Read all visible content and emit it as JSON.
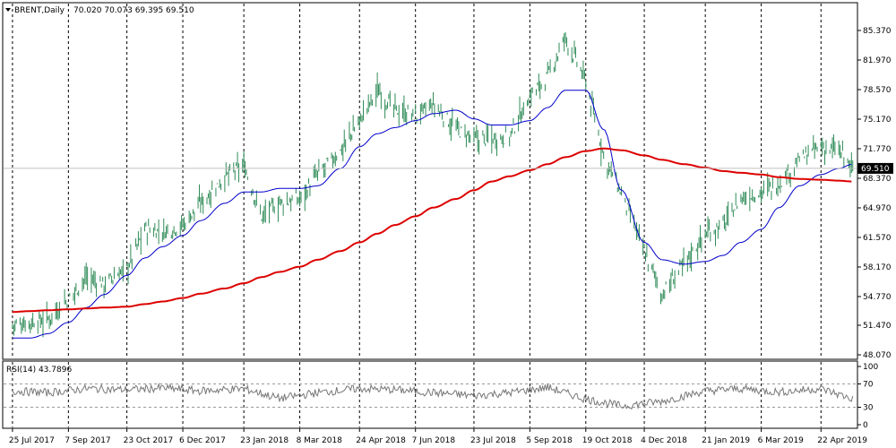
{
  "header": {
    "symbol": "BRENT,Daily",
    "ohlc": "70.020 70.073 69.395 69.510"
  },
  "colors": {
    "price_bars": "#2e8b57",
    "ma_fast": "#0000cc",
    "ma_slow": "#dd0000",
    "grid": "#000000",
    "rsi_line": "#777777",
    "price_line": "#c0c0c0",
    "last_price_bg": "#000000",
    "last_price_fg": "#ffffff"
  },
  "chart_data": [
    {
      "type": "line",
      "panel": "price",
      "title": "BRENT,Daily",
      "ylim": [
        48.07,
        88.0
      ],
      "y_ticks": [
        "85.370",
        "81.970",
        "78.570",
        "75.170",
        "71.770",
        "68.370",
        "64.970",
        "61.570",
        "58.170",
        "54.770",
        "51.470",
        "48.070"
      ],
      "last_price_label": "69.510",
      "x_dates": [
        "25 Jul 2017",
        "7 Sep 2017",
        "23 Oct 2017",
        "6 Dec 2017",
        "23 Jan 2018",
        "8 Mar 2018",
        "24 Apr 2018",
        "7 Jun 2018",
        "23 Jul 2018",
        "5 Sep 2018",
        "19 Oct 2018",
        "4 Dec 2018",
        "21 Jan 2019",
        "6 Mar 2019",
        "22 Apr 2019"
      ],
      "series": [
        {
          "style": "bars",
          "x": [
            "2017-07-25",
            "2017-08-08",
            "2017-08-22",
            "2017-09-07",
            "2017-09-21",
            "2017-10-05",
            "2017-10-23",
            "2017-11-06",
            "2017-11-20",
            "2017-12-06",
            "2017-12-20",
            "2018-01-08",
            "2018-01-23",
            "2018-02-06",
            "2018-02-20",
            "2018-03-08",
            "2018-03-22",
            "2018-04-09",
            "2018-04-24",
            "2018-05-08",
            "2018-05-22",
            "2018-06-07",
            "2018-06-21",
            "2018-07-09",
            "2018-07-23",
            "2018-08-06",
            "2018-08-20",
            "2018-09-05",
            "2018-09-19",
            "2018-10-03",
            "2018-10-19",
            "2018-11-02",
            "2018-11-16",
            "2018-12-04",
            "2018-12-18",
            "2019-01-04",
            "2019-01-21",
            "2019-02-04",
            "2019-02-18",
            "2019-03-06",
            "2019-03-20",
            "2019-04-05",
            "2019-04-22",
            "2019-05-06",
            "2019-05-17"
          ],
          "values": [
            51.5,
            51.8,
            52.2,
            54.5,
            57.0,
            56.2,
            58.0,
            62.5,
            62.2,
            63.0,
            65.5,
            68.5,
            69.8,
            64.0,
            65.5,
            66.0,
            68.8,
            71.5,
            75.0,
            78.5,
            76.2,
            75.5,
            76.8,
            74.0,
            72.8,
            73.0,
            73.2,
            77.8,
            80.0,
            84.5,
            79.5,
            71.0,
            66.5,
            60.0,
            55.0,
            58.5,
            62.0,
            63.0,
            66.0,
            66.8,
            67.8,
            70.5,
            72.0,
            71.5,
            69.5
          ]
        },
        {
          "style": "line",
          "x": [
            "2017-07-25",
            "2017-08-08",
            "2017-08-22",
            "2017-09-07",
            "2017-09-21",
            "2017-10-05",
            "2017-10-23",
            "2017-11-06",
            "2017-11-20",
            "2017-12-06",
            "2017-12-20",
            "2018-01-08",
            "2018-01-23",
            "2018-02-06",
            "2018-02-20",
            "2018-03-08",
            "2018-03-22",
            "2018-04-09",
            "2018-04-24",
            "2018-05-08",
            "2018-05-22",
            "2018-06-07",
            "2018-06-21",
            "2018-07-09",
            "2018-07-23",
            "2018-08-06",
            "2018-08-20",
            "2018-09-05",
            "2018-09-19",
            "2018-10-03",
            "2018-10-19",
            "2018-11-02",
            "2018-11-16",
            "2018-12-04",
            "2018-12-18",
            "2019-01-04",
            "2019-01-21",
            "2019-02-04",
            "2019-02-18",
            "2019-03-06",
            "2019-03-20",
            "2019-04-05",
            "2019-04-22",
            "2019-05-06",
            "2019-05-17"
          ],
          "values": [
            50.0,
            50.0,
            50.5,
            51.8,
            53.5,
            55.0,
            57.2,
            59.2,
            60.5,
            61.8,
            63.5,
            65.5,
            66.8,
            66.8,
            67.2,
            67.2,
            67.5,
            69.5,
            72.0,
            73.5,
            74.2,
            75.0,
            75.8,
            76.2,
            75.2,
            74.5,
            74.5,
            75.0,
            76.5,
            78.5,
            78.5,
            74.0,
            67.0,
            61.0,
            59.0,
            58.5,
            58.8,
            59.5,
            61.0,
            62.5,
            65.0,
            67.5,
            68.8,
            69.5,
            70.0
          ]
        },
        {
          "style": "line",
          "x": [
            "2017-07-25",
            "2017-08-08",
            "2017-08-22",
            "2017-09-07",
            "2017-09-21",
            "2017-10-05",
            "2017-10-23",
            "2017-11-06",
            "2017-11-20",
            "2017-12-06",
            "2017-12-20",
            "2018-01-08",
            "2018-01-23",
            "2018-02-06",
            "2018-02-20",
            "2018-03-08",
            "2018-03-22",
            "2018-04-09",
            "2018-04-24",
            "2018-05-08",
            "2018-05-22",
            "2018-06-07",
            "2018-06-21",
            "2018-07-09",
            "2018-07-23",
            "2018-08-06",
            "2018-08-20",
            "2018-09-05",
            "2018-09-19",
            "2018-10-03",
            "2018-10-19",
            "2018-11-02",
            "2018-11-16",
            "2018-12-04",
            "2018-12-18",
            "2019-01-04",
            "2019-01-21",
            "2019-02-04",
            "2019-02-18",
            "2019-03-06",
            "2019-03-20",
            "2019-04-05",
            "2019-04-22",
            "2019-05-06",
            "2019-05-17"
          ],
          "values": [
            53.0,
            53.1,
            53.2,
            53.3,
            53.4,
            53.5,
            53.6,
            53.9,
            54.2,
            54.6,
            55.1,
            55.7,
            56.3,
            57.0,
            57.6,
            58.2,
            59.0,
            60.0,
            61.0,
            62.0,
            63.0,
            64.0,
            65.0,
            66.0,
            67.0,
            68.0,
            68.6,
            69.3,
            70.0,
            70.8,
            71.5,
            71.8,
            71.6,
            71.0,
            70.5,
            70.0,
            69.6,
            69.2,
            69.0,
            68.8,
            68.5,
            68.3,
            68.2,
            68.1,
            68.0
          ]
        }
      ]
    },
    {
      "type": "line",
      "panel": "rsi",
      "title": "RSI(14) 43.7896",
      "ylim": [
        0,
        100
      ],
      "y_ticks": [
        "100",
        "70",
        "30",
        "0"
      ],
      "x": [
        "2017-07-25",
        "2017-08-22",
        "2017-09-21",
        "2017-10-23",
        "2017-11-20",
        "2017-12-20",
        "2018-01-23",
        "2018-02-20",
        "2018-03-22",
        "2018-04-24",
        "2018-05-22",
        "2018-06-21",
        "2018-07-23",
        "2018-08-20",
        "2018-09-19",
        "2018-10-19",
        "2018-11-16",
        "2018-12-18",
        "2019-01-21",
        "2019-02-18",
        "2019-03-20",
        "2019-04-22",
        "2019-05-17"
      ],
      "values": [
        58,
        55,
        62,
        60,
        63,
        58,
        62,
        45,
        55,
        62,
        60,
        55,
        50,
        55,
        64,
        44,
        32,
        40,
        58,
        62,
        56,
        62,
        44
      ]
    }
  ]
}
